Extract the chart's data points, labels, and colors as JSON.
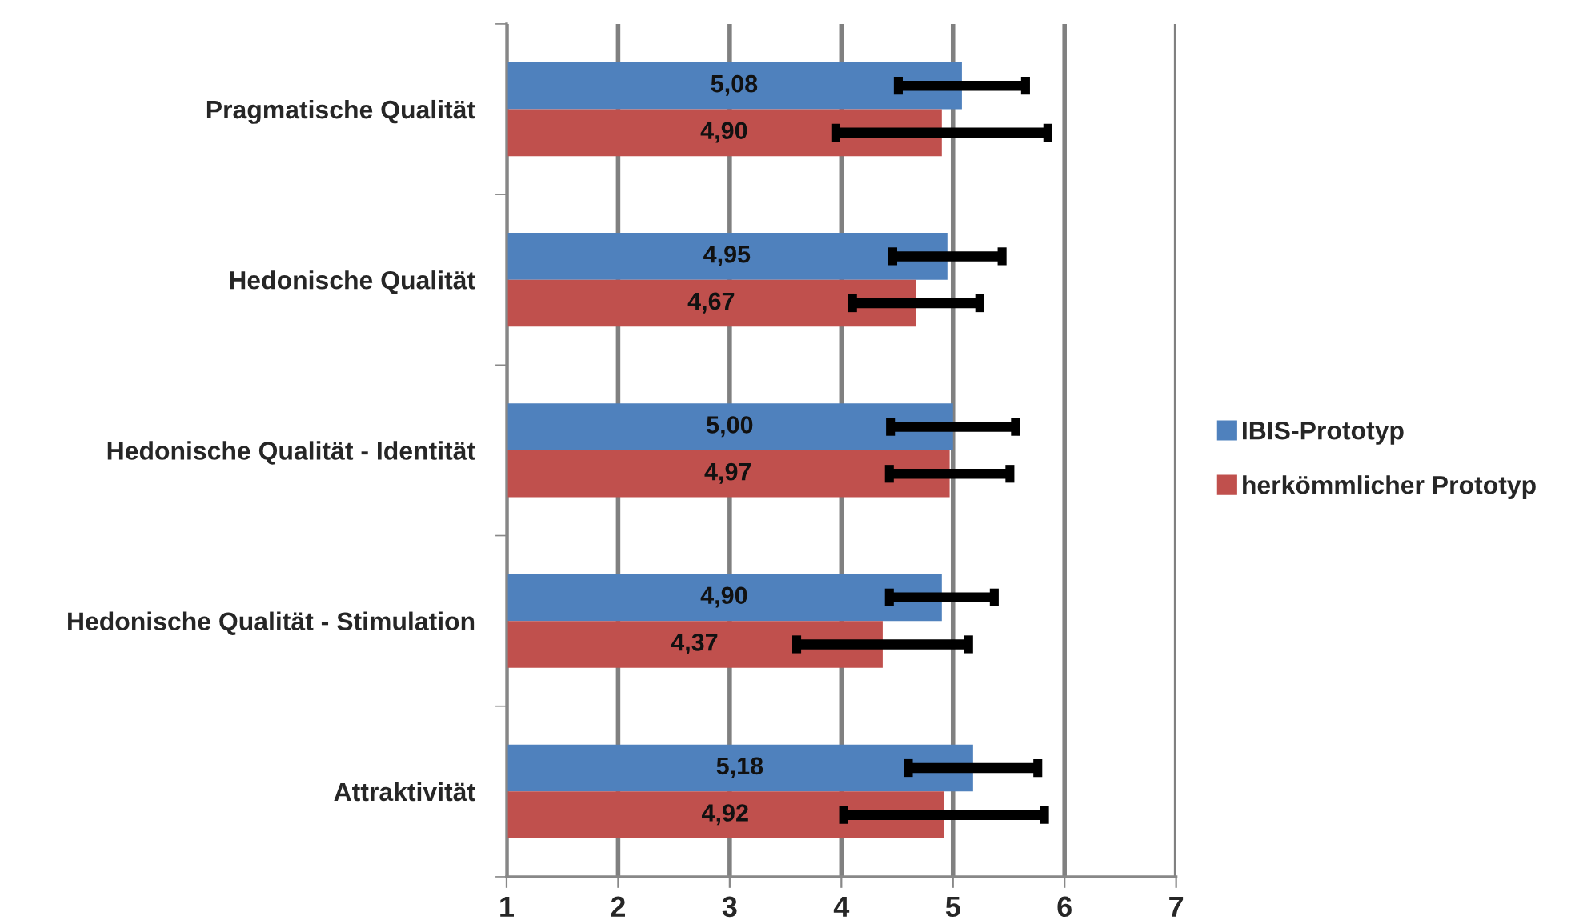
{
  "chart_data": {
    "type": "bar",
    "orientation": "horizontal",
    "categories": [
      "Pragmatische Qualität",
      "Hedonische Qualität",
      "Hedonische Qualität - Identität",
      "Hedonische Qualität - Stimulation",
      "Attraktivität"
    ],
    "series": [
      {
        "name": "IBIS-Prototyp",
        "color": "#4f81bd",
        "values": [
          5.08,
          4.95,
          5.0,
          4.9,
          5.18
        ],
        "value_labels": [
          "5,08",
          "4,95",
          "5,00",
          "4,90",
          "5,18"
        ],
        "errors": [
          0.57,
          0.49,
          0.56,
          0.47,
          0.58
        ]
      },
      {
        "name": "herkömmlicher Prototyp",
        "color": "#c0504d",
        "values": [
          4.9,
          4.67,
          4.97,
          4.37,
          4.92
        ],
        "value_labels": [
          "4,90",
          "4,67",
          "4,97",
          "4,37",
          "4,92"
        ],
        "errors": [
          0.95,
          0.57,
          0.54,
          0.77,
          0.9
        ]
      }
    ],
    "xlim": [
      1,
      7
    ],
    "xticks": [
      1,
      2,
      3,
      4,
      5,
      6,
      7
    ],
    "grid": "x",
    "legend": "right"
  }
}
